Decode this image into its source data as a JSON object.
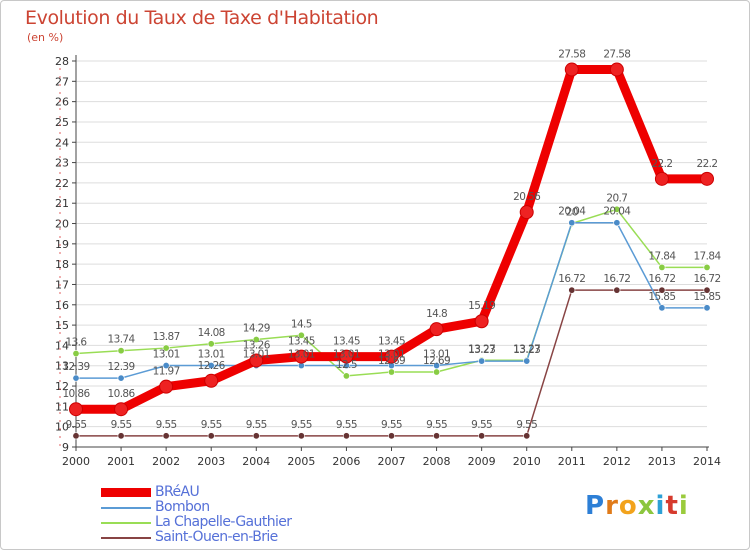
{
  "title": "Evolution du Taux de Taxe d'Habitation",
  "subtitle": "(en %)",
  "brand": "Proxiti",
  "colors": {
    "background_plot": "#ffffff",
    "gridline": "#dddddd",
    "axis": "#444444",
    "tick_text": "#333333",
    "label_text": "#555555"
  },
  "chart_data": {
    "type": "line",
    "title": "Evolution du Taux de Taxe d'Habitation",
    "ylabel": "(en %)",
    "ylim": [
      9,
      28
    ],
    "yticks": [
      9,
      10,
      11,
      12,
      13,
      14,
      15,
      16,
      17,
      18,
      19,
      20,
      21,
      22,
      23,
      24,
      25,
      26,
      27,
      28
    ],
    "grid": true,
    "legend_position": "bottom-left",
    "categories": [
      "2000",
      "2001",
      "2002",
      "2003",
      "2004",
      "2005",
      "2006",
      "2007",
      "2008",
      "2009",
      "2010",
      "2011",
      "2012",
      "2013",
      "2014"
    ],
    "series": [
      {
        "name": "BRéAU",
        "color": "#ee0000",
        "marker": "#ee2222",
        "width": 9,
        "values": [
          10.86,
          10.86,
          11.97,
          12.26,
          13.26,
          13.45,
          13.45,
          13.45,
          14.8,
          15.19,
          20.56,
          27.58,
          27.58,
          22.2,
          22.2
        ],
        "labels": [
          "10.86",
          "10.86",
          "11.97",
          "12.26",
          "13.26",
          "13.45",
          "13.45",
          "13.45",
          "14.8",
          "15.19",
          "20.56",
          "27.58",
          "27.58",
          "22.2",
          "22.2"
        ]
      },
      {
        "name": "Bombon",
        "color": "#5b9bd5",
        "marker": "#4a8bc8",
        "width": 1.5,
        "values": [
          12.39,
          12.39,
          13.01,
          13.01,
          13.01,
          13.01,
          13.01,
          13.01,
          13.01,
          13.23,
          13.23,
          20.04,
          20.04,
          15.85,
          15.85
        ],
        "labels": [
          "12.39",
          "12.39",
          "13.01",
          "13.01",
          "13.01",
          "13.01",
          "13.01",
          "13.01",
          "13.01",
          "13.23",
          "13.23",
          "20.04",
          "20.04",
          "15.85",
          "15.85"
        ]
      },
      {
        "name": "La Chapelle-Gauthier",
        "color": "#99dd55",
        "marker": "#88cc44",
        "width": 1.5,
        "values": [
          13.6,
          13.74,
          13.87,
          14.08,
          14.29,
          14.5,
          12.5,
          12.69,
          12.69,
          13.27,
          13.27,
          20.0,
          20.7,
          17.84,
          17.84
        ],
        "labels": [
          "13.6",
          "13.74",
          "13.87",
          "14.08",
          "14.29",
          "14.5",
          "12.5",
          "12.69",
          "12.69",
          "13.27",
          "13.27",
          "20",
          "20.7",
          "17.84",
          "17.84"
        ]
      },
      {
        "name": "Saint-Ouen-en-Brie",
        "color": "#884444",
        "marker": "#663333",
        "width": 1.5,
        "values": [
          9.55,
          9.55,
          9.55,
          9.55,
          9.55,
          9.55,
          9.55,
          9.55,
          9.55,
          9.55,
          9.55,
          16.72,
          16.72,
          16.72,
          16.72
        ],
        "labels": [
          "9.55",
          "9.55",
          "9.55",
          "9.55",
          "9.55",
          "9.55",
          "9.55",
          "9.55",
          "9.55",
          "9.55",
          "9.55",
          "16.72",
          "16.72",
          "16.72",
          "16.72"
        ]
      }
    ]
  }
}
